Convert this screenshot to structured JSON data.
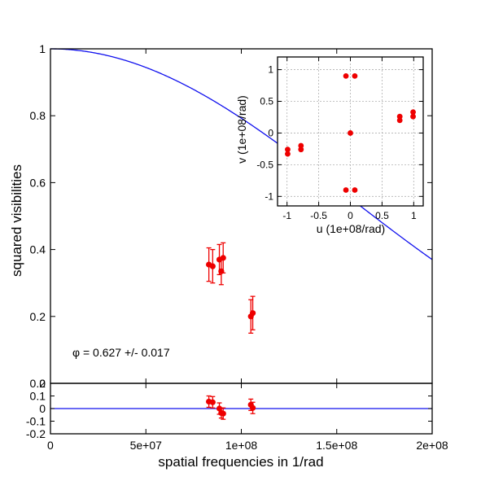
{
  "chart_data": [
    {
      "id": "main",
      "type": "scatter",
      "xlabel": "spatial frequencies in 1/rad",
      "ylabel": "squared visibilities",
      "xlim": [
        0,
        200000000
      ],
      "ylim": [
        0,
        1
      ],
      "xticks": [
        {
          "value": 0,
          "label": "0"
        },
        {
          "value": 50000000,
          "label": "5e+07"
        },
        {
          "value": 100000000,
          "label": "1e+08"
        },
        {
          "value": 150000000,
          "label": "1.5e+08"
        },
        {
          "value": 200000000,
          "label": "2e+08"
        }
      ],
      "yticks": [
        {
          "value": 0,
          "label": "0"
        },
        {
          "value": 0.2,
          "label": "0.2"
        },
        {
          "value": 0.4,
          "label": "0.4"
        },
        {
          "value": 0.6,
          "label": "0.6"
        },
        {
          "value": 0.8,
          "label": "0.8"
        },
        {
          "value": 1,
          "label": "1"
        }
      ],
      "grid": false,
      "annotation": "φ =  0.627 +/-  0.017",
      "model": {
        "kind": "uniform-disk",
        "phi": 0.627,
        "phi_err": 0.017
      },
      "points": [
        {
          "x": 83000000,
          "y": 0.355,
          "err": 0.05
        },
        {
          "x": 85000000,
          "y": 0.35,
          "err": 0.05
        },
        {
          "x": 88500000,
          "y": 0.37,
          "err": 0.045
        },
        {
          "x": 89500000,
          "y": 0.335,
          "err": 0.04
        },
        {
          "x": 90500000,
          "y": 0.375,
          "err": 0.045
        },
        {
          "x": 105000000,
          "y": 0.2,
          "err": 0.05
        },
        {
          "x": 106000000,
          "y": 0.21,
          "err": 0.05
        }
      ],
      "colors": {
        "model": "#1010ee",
        "points": "#ee0000"
      }
    },
    {
      "id": "residuals",
      "type": "scatter",
      "xlim": [
        0,
        200000000
      ],
      "ylim": [
        -0.2,
        0.2
      ],
      "yticks": [
        {
          "value": -0.2,
          "label": "-0.2"
        },
        {
          "value": -0.1,
          "label": "-0.1"
        },
        {
          "value": 0,
          "label": "0"
        },
        {
          "value": 0.1,
          "label": "0.1"
        },
        {
          "value": 0.2,
          "label": "0.2"
        }
      ],
      "grid": false,
      "points": [
        {
          "x": 83000000,
          "y": 0.055,
          "err": 0.045
        },
        {
          "x": 85000000,
          "y": 0.05,
          "err": 0.045
        },
        {
          "x": 88500000,
          "y": 0.0,
          "err": 0.045
        },
        {
          "x": 89500000,
          "y": -0.035,
          "err": 0.04
        },
        {
          "x": 90500000,
          "y": -0.04,
          "err": 0.045
        },
        {
          "x": 105000000,
          "y": 0.03,
          "err": 0.045
        },
        {
          "x": 106000000,
          "y": 0.005,
          "err": 0.045
        }
      ],
      "reference_line": 0,
      "colors": {
        "line": "#1010ee",
        "points": "#ee0000"
      }
    },
    {
      "id": "uv_coverage",
      "type": "scatter",
      "xlabel": "u (1e+08/rad)",
      "ylabel": "v (1e+08/rad)",
      "xlim": [
        -1.15,
        1.15
      ],
      "ylim": [
        -1.15,
        1.2
      ],
      "xticks": [
        {
          "value": -1,
          "label": "-1"
        },
        {
          "value": -0.5,
          "label": "-0.5"
        },
        {
          "value": 0,
          "label": "0"
        },
        {
          "value": 0.5,
          "label": "0.5"
        },
        {
          "value": 1,
          "label": "1"
        }
      ],
      "yticks": [
        {
          "value": -1,
          "label": "-1"
        },
        {
          "value": -0.5,
          "label": "-0.5"
        },
        {
          "value": 0,
          "label": "0"
        },
        {
          "value": 0.5,
          "label": "0.5"
        },
        {
          "value": 1,
          "label": "1"
        }
      ],
      "grid": true,
      "points": [
        {
          "x": 0,
          "y": 0
        },
        {
          "x": -0.07,
          "y": 0.9
        },
        {
          "x": 0.07,
          "y": 0.9
        },
        {
          "x": -0.07,
          "y": -0.9
        },
        {
          "x": 0.07,
          "y": -0.9
        },
        {
          "x": 0.78,
          "y": 0.26
        },
        {
          "x": 0.78,
          "y": 0.2
        },
        {
          "x": 0.99,
          "y": 0.33
        },
        {
          "x": 0.99,
          "y": 0.26
        },
        {
          "x": -0.78,
          "y": -0.2
        },
        {
          "x": -0.78,
          "y": -0.26
        },
        {
          "x": -0.99,
          "y": -0.26
        },
        {
          "x": -0.99,
          "y": -0.33
        }
      ],
      "colors": {
        "points": "#ee0000",
        "grid": "#b0b0b0"
      }
    }
  ]
}
